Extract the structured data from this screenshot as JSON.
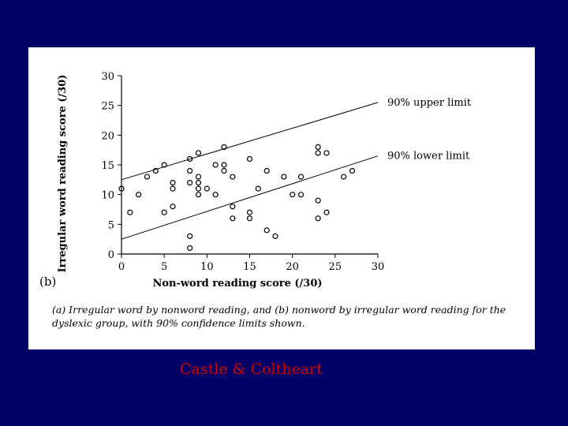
{
  "slide": {
    "background": "#000066",
    "credit": "Castle & Coltheart",
    "credit_color": "#cc0000"
  },
  "figure": {
    "panel_label": "(b)",
    "caption_line1": "(a) Irregular word by nonword reading, and (b) nonword by irregular word reading for the",
    "caption_line2": "dyslexic group, with 90% confidence limits shown."
  },
  "chart_data": {
    "type": "scatter",
    "title": "",
    "xlabel": "Non-word reading score (/30)",
    "ylabel": "Irregular word reading score (/30)",
    "xlim": [
      0,
      30
    ],
    "ylim": [
      0,
      30
    ],
    "x_ticks": [
      "0",
      "5",
      "10",
      "15",
      "20",
      "25",
      "30"
    ],
    "y_ticks": [
      "0",
      "5",
      "10",
      "15",
      "20",
      "25",
      "30"
    ],
    "grid": false,
    "series": [
      {
        "points": [
          [
            0,
            11
          ],
          [
            1,
            7
          ],
          [
            2,
            10
          ],
          [
            3,
            13
          ],
          [
            4,
            14
          ],
          [
            5,
            15
          ],
          [
            5,
            7
          ],
          [
            6,
            12
          ],
          [
            6,
            11
          ],
          [
            6,
            8
          ],
          [
            8,
            16
          ],
          [
            8,
            14
          ],
          [
            8,
            12
          ],
          [
            8,
            3
          ],
          [
            8,
            1
          ],
          [
            9,
            17
          ],
          [
            9,
            13
          ],
          [
            9,
            12
          ],
          [
            9,
            11
          ],
          [
            9,
            10
          ],
          [
            10,
            11
          ],
          [
            11,
            15
          ],
          [
            11,
            10
          ],
          [
            12,
            18
          ],
          [
            12,
            15
          ],
          [
            12,
            14
          ],
          [
            13,
            13
          ],
          [
            13,
            8
          ],
          [
            13,
            6
          ],
          [
            15,
            16
          ],
          [
            15,
            7
          ],
          [
            15,
            6
          ],
          [
            16,
            11
          ],
          [
            17,
            14
          ],
          [
            17,
            4
          ],
          [
            18,
            3
          ],
          [
            19,
            13
          ],
          [
            20,
            10
          ],
          [
            21,
            13
          ],
          [
            21,
            10
          ],
          [
            23,
            18
          ],
          [
            23,
            17
          ],
          [
            23,
            9
          ],
          [
            23,
            6
          ],
          [
            24,
            17
          ],
          [
            24,
            7
          ],
          [
            26,
            13
          ],
          [
            27,
            14
          ]
        ]
      }
    ],
    "lines": [
      {
        "label": "90% upper limit",
        "x": [
          0,
          30
        ],
        "y": [
          12.5,
          25.5
        ]
      },
      {
        "label": "90% lower limit",
        "x": [
          0,
          30
        ],
        "y": [
          2.5,
          16.5
        ]
      }
    ],
    "marker": "open-circle"
  }
}
